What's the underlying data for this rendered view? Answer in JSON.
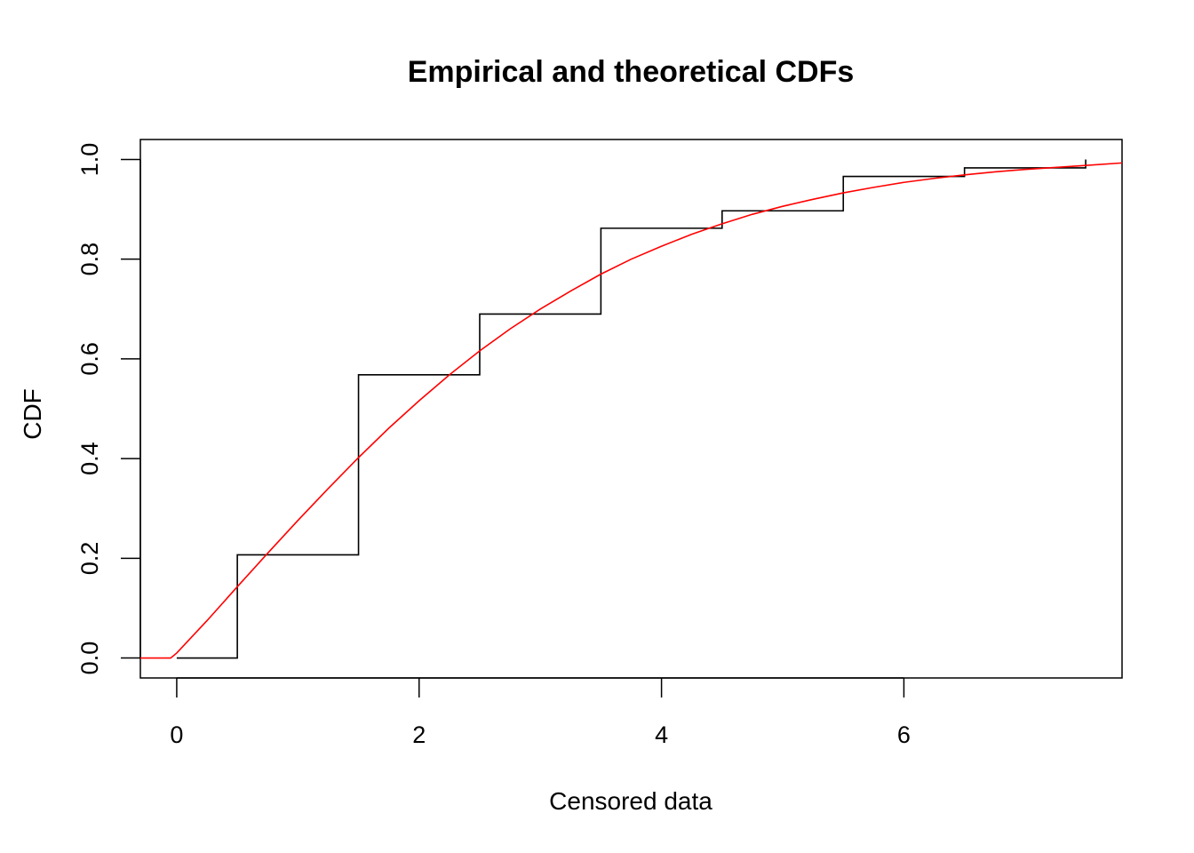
{
  "chart_data": {
    "type": "line",
    "title": "Empirical and theoretical CDFs",
    "xlabel": "Censored data",
    "ylabel": "CDF",
    "xlim": [
      -0.3,
      7.8
    ],
    "ylim": [
      -0.04,
      1.04
    ],
    "x_ticks": [
      0,
      2,
      4,
      6
    ],
    "y_ticks": [
      0.0,
      0.2,
      0.4,
      0.6,
      0.8,
      1.0
    ],
    "x_tick_labels": [
      "0",
      "2",
      "4",
      "6"
    ],
    "y_tick_labels": [
      "0.0",
      "0.2",
      "0.4",
      "0.6",
      "0.8",
      "1.0"
    ],
    "grid": false,
    "legend": "none",
    "series": [
      {
        "kind": "step",
        "color": "#000000",
        "x": [
          0,
          0.5,
          1.5,
          2.5,
          3.5,
          4.5,
          5.5,
          6.5,
          7.5
        ],
        "y": [
          0,
          0.207,
          0.568,
          0.69,
          0.862,
          0.897,
          0.966,
          0.983,
          1.0
        ]
      },
      {
        "kind": "curve",
        "color": "#ff0000",
        "x": [
          -0.3,
          -0.05,
          0.0,
          0.25,
          0.5,
          0.75,
          1.0,
          1.25,
          1.5,
          1.75,
          2.0,
          2.25,
          2.5,
          2.75,
          3.0,
          3.25,
          3.5,
          3.75,
          4.0,
          4.25,
          4.5,
          4.75,
          5.0,
          5.25,
          5.5,
          5.75,
          6.0,
          6.25,
          6.5,
          6.75,
          7.0,
          7.25,
          7.5,
          7.8
        ],
        "y": [
          0,
          0,
          0.01,
          0.075,
          0.143,
          0.21,
          0.276,
          0.34,
          0.402,
          0.461,
          0.516,
          0.568,
          0.616,
          0.66,
          0.7,
          0.736,
          0.77,
          0.8,
          0.826,
          0.85,
          0.871,
          0.89,
          0.906,
          0.92,
          0.933,
          0.944,
          0.954,
          0.962,
          0.969,
          0.975,
          0.98,
          0.984,
          0.988,
          0.993
        ]
      }
    ]
  }
}
